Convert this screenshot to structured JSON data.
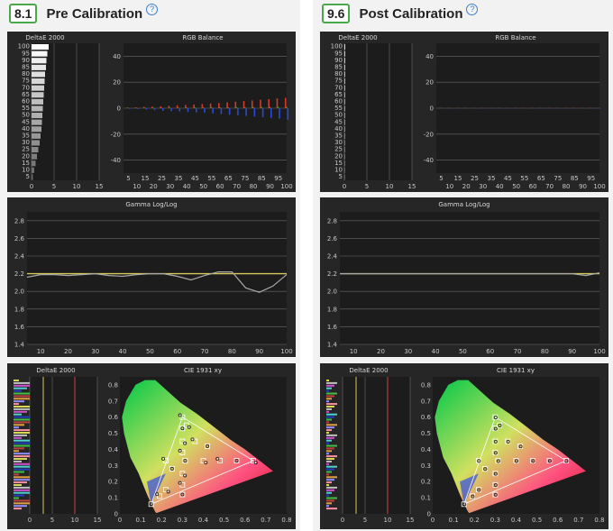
{
  "panels": [
    {
      "score": "8.1",
      "title": "Pre Calibration",
      "grayscale_de": {
        "title": "DeltaE 2000",
        "y_ticks": [
          "100",
          "95",
          "90",
          "85",
          "80",
          "75",
          "70",
          "65",
          "60",
          "55",
          "50",
          "45",
          "40",
          "35",
          "30",
          "25",
          "20",
          "15",
          "10",
          "5"
        ],
        "x_ticks": [
          "0",
          "5",
          "10",
          "15"
        ],
        "values": [
          3.8,
          3.5,
          3.3,
          3.2,
          3.0,
          2.9,
          2.8,
          2.7,
          2.6,
          2.5,
          2.4,
          2.3,
          2.2,
          2.0,
          1.8,
          1.5,
          1.2,
          0.9,
          0.6,
          0.3
        ]
      },
      "rgb_balance": {
        "title": "RGB Balance",
        "y_ticks": [
          "40",
          "20",
          "0",
          "-20",
          "-40"
        ],
        "x_ticks_top": [
          "5",
          "15",
          "25",
          "35",
          "45",
          "55",
          "65",
          "75",
          "85",
          "95"
        ],
        "x_ticks_bottom": [
          "10",
          "20",
          "30",
          "40",
          "50",
          "60",
          "70",
          "80",
          "90",
          "100"
        ],
        "red": [
          0.5,
          0.6,
          1,
          1.2,
          1.5,
          1.8,
          2.2,
          2.5,
          2.8,
          3.2,
          3.6,
          4,
          4.5,
          5,
          5.5,
          6,
          6.5,
          7,
          7.5,
          8
        ],
        "green": [
          0.2,
          0.2,
          0.3,
          0.3,
          0.4,
          0.4,
          0.5,
          0.5,
          0.5,
          0.6,
          0.6,
          0.7,
          0.7,
          0.8,
          0.8,
          0.9,
          0.9,
          1,
          1,
          1.1
        ],
        "blue": [
          -0.5,
          -0.7,
          -1,
          -1.5,
          -2,
          -2.2,
          -2.5,
          -3,
          -3.2,
          -3.5,
          -4,
          -4.5,
          -5,
          -5.5,
          -6,
          -6.5,
          -7,
          -7.5,
          -8,
          -9
        ]
      },
      "gamma": {
        "title": "Gamma Log/Log",
        "y_ticks": [
          "2.8",
          "2.6",
          "2.4",
          "2.2",
          "2.0",
          "1.8",
          "1.6",
          "1.4"
        ],
        "x_ticks": [
          "10",
          "20",
          "30",
          "40",
          "50",
          "60",
          "70",
          "80",
          "90",
          "100"
        ],
        "target": 2.2,
        "x": [
          5,
          10,
          15,
          20,
          25,
          30,
          35,
          40,
          45,
          50,
          55,
          60,
          65,
          70,
          75,
          80,
          85,
          90,
          95,
          100
        ],
        "y": [
          2.16,
          2.19,
          2.19,
          2.18,
          2.19,
          2.2,
          2.18,
          2.17,
          2.19,
          2.2,
          2.2,
          2.17,
          2.13,
          2.18,
          2.22,
          2.22,
          2.04,
          1.99,
          2.06,
          2.19
        ]
      },
      "color_de": {
        "title": "DeltaE 2000",
        "x_ticks": [
          "0",
          "5",
          "10",
          "15"
        ]
      },
      "cie": {
        "title": "CIE 1931 xy",
        "y_ticks": [
          "0.8",
          "0.7",
          "0.6",
          "0.5",
          "0.4",
          "0.3",
          "0.2",
          "0.1",
          "0"
        ],
        "x_ticks": [
          "0",
          "0.1",
          "0.2",
          "0.3",
          "0.4",
          "0.5",
          "0.6",
          "0.7",
          "0.8"
        ]
      }
    },
    {
      "score": "9.6",
      "title": "Post Calibration",
      "grayscale_de": {
        "title": "DeltaE 2000",
        "y_ticks": [
          "100",
          "95",
          "90",
          "85",
          "80",
          "75",
          "70",
          "65",
          "60",
          "55",
          "50",
          "45",
          "40",
          "35",
          "30",
          "25",
          "20",
          "15",
          "10",
          "5"
        ],
        "x_ticks": [
          "0",
          "5",
          "10",
          "15"
        ],
        "values": [
          0.1,
          0.1,
          0.1,
          0.1,
          0.1,
          0.1,
          0.1,
          0.1,
          0.1,
          0.1,
          0.1,
          0.1,
          0.1,
          0.1,
          0.1,
          0.1,
          0.1,
          0.1,
          0.1,
          0.1
        ]
      },
      "rgb_balance": {
        "title": "RGB Balance",
        "y_ticks": [
          "40",
          "20",
          "0",
          "-20",
          "-40"
        ],
        "x_ticks_top": [
          "5",
          "15",
          "25",
          "35",
          "45",
          "55",
          "65",
          "75",
          "85",
          "95"
        ],
        "x_ticks_bottom": [
          "10",
          "20",
          "30",
          "40",
          "50",
          "60",
          "70",
          "80",
          "90",
          "100"
        ],
        "red": [
          0.2,
          0.2,
          0.2,
          0.2,
          0.2,
          0.2,
          0.2,
          0.2,
          0.2,
          0.2,
          0.2,
          0.2,
          0.2,
          0.2,
          0.2,
          0.2,
          0.2,
          0.2,
          0.2,
          0.2
        ],
        "green": [
          0.1,
          0.1,
          0.1,
          0.1,
          0.1,
          0.1,
          0.1,
          0.1,
          0.1,
          0.1,
          0.1,
          0.1,
          0.1,
          0.1,
          0.1,
          0.1,
          0.1,
          0.1,
          0.1,
          0.1
        ],
        "blue": [
          -0.2,
          -0.2,
          -0.2,
          -0.2,
          -0.2,
          -0.2,
          -0.2,
          -0.2,
          -0.2,
          -0.2,
          -0.2,
          -0.2,
          -0.2,
          -0.2,
          -0.2,
          -0.2,
          -0.2,
          -0.2,
          -0.2,
          -0.2
        ]
      },
      "gamma": {
        "title": "Gamma Log/Log",
        "y_ticks": [
          "2.8",
          "2.6",
          "2.4",
          "2.2",
          "2.0",
          "1.8",
          "1.6",
          "1.4"
        ],
        "x_ticks": [
          "10",
          "20",
          "30",
          "40",
          "50",
          "60",
          "70",
          "80",
          "90",
          "100"
        ],
        "target": 2.2,
        "x": [
          5,
          10,
          15,
          20,
          25,
          30,
          35,
          40,
          45,
          50,
          55,
          60,
          65,
          70,
          75,
          80,
          85,
          90,
          95,
          100
        ],
        "y": [
          2.2,
          2.2,
          2.2,
          2.2,
          2.2,
          2.2,
          2.2,
          2.2,
          2.2,
          2.2,
          2.2,
          2.2,
          2.2,
          2.2,
          2.2,
          2.2,
          2.2,
          2.2,
          2.18,
          2.21
        ]
      },
      "color_de": {
        "title": "DeltaE 2000",
        "x_ticks": [
          "0",
          "5",
          "10",
          "15"
        ]
      },
      "cie": {
        "title": "CIE 1931 xy",
        "y_ticks": [
          "0.8",
          "0.7",
          "0.6",
          "0.5",
          "0.4",
          "0.3",
          "0.2",
          "0.1",
          "0"
        ],
        "x_ticks": [
          "0",
          "0.1",
          "0.2",
          "0.3",
          "0.4",
          "0.5",
          "0.6",
          "0.7",
          "0.8"
        ]
      }
    }
  ],
  "colors": {
    "chart_bg": "#262626",
    "plot_bg": "#1c1c1c",
    "grid": "#6a6a6a",
    "gamma_target": "#d8c85a",
    "gamma_measured": "#a8a8a8",
    "red": "#d63a2a",
    "blue": "#2a4ad6",
    "score_border": "#4aa84a",
    "de_ref_line": "#d04040"
  },
  "chart_data": [
    {
      "type": "line",
      "title": "Gamma Log/Log",
      "x": [
        5,
        10,
        15,
        20,
        25,
        30,
        35,
        40,
        45,
        50,
        55,
        60,
        65,
        70,
        75,
        80,
        85,
        90,
        95,
        100
      ],
      "series": [
        {
          "name": "",
          "values": [
            2.16,
            2.19,
            2.19,
            2.18,
            2.19,
            2.2,
            2.18,
            2.17,
            2.19,
            2.2,
            2.2,
            2.17,
            2.13,
            2.18,
            2.22,
            2.22,
            2.04,
            1.99,
            2.06,
            2.19
          ]
        }
      ],
      "ylim": [
        1.4,
        2.9
      ],
      "xlim": [
        5,
        100
      ]
    },
    {
      "type": "line",
      "title": "Gamma Log/Log",
      "x": [
        5,
        10,
        15,
        20,
        25,
        30,
        35,
        40,
        45,
        50,
        55,
        60,
        65,
        70,
        75,
        80,
        85,
        90,
        95,
        100
      ],
      "series": [
        {
          "name": "",
          "values": [
            2.2,
            2.2,
            2.2,
            2.2,
            2.2,
            2.2,
            2.2,
            2.2,
            2.2,
            2.2,
            2.2,
            2.2,
            2.2,
            2.2,
            2.2,
            2.2,
            2.2,
            2.2,
            2.18,
            2.21
          ]
        }
      ],
      "ylim": [
        1.4,
        2.9
      ],
      "xlim": [
        5,
        100
      ]
    }
  ]
}
